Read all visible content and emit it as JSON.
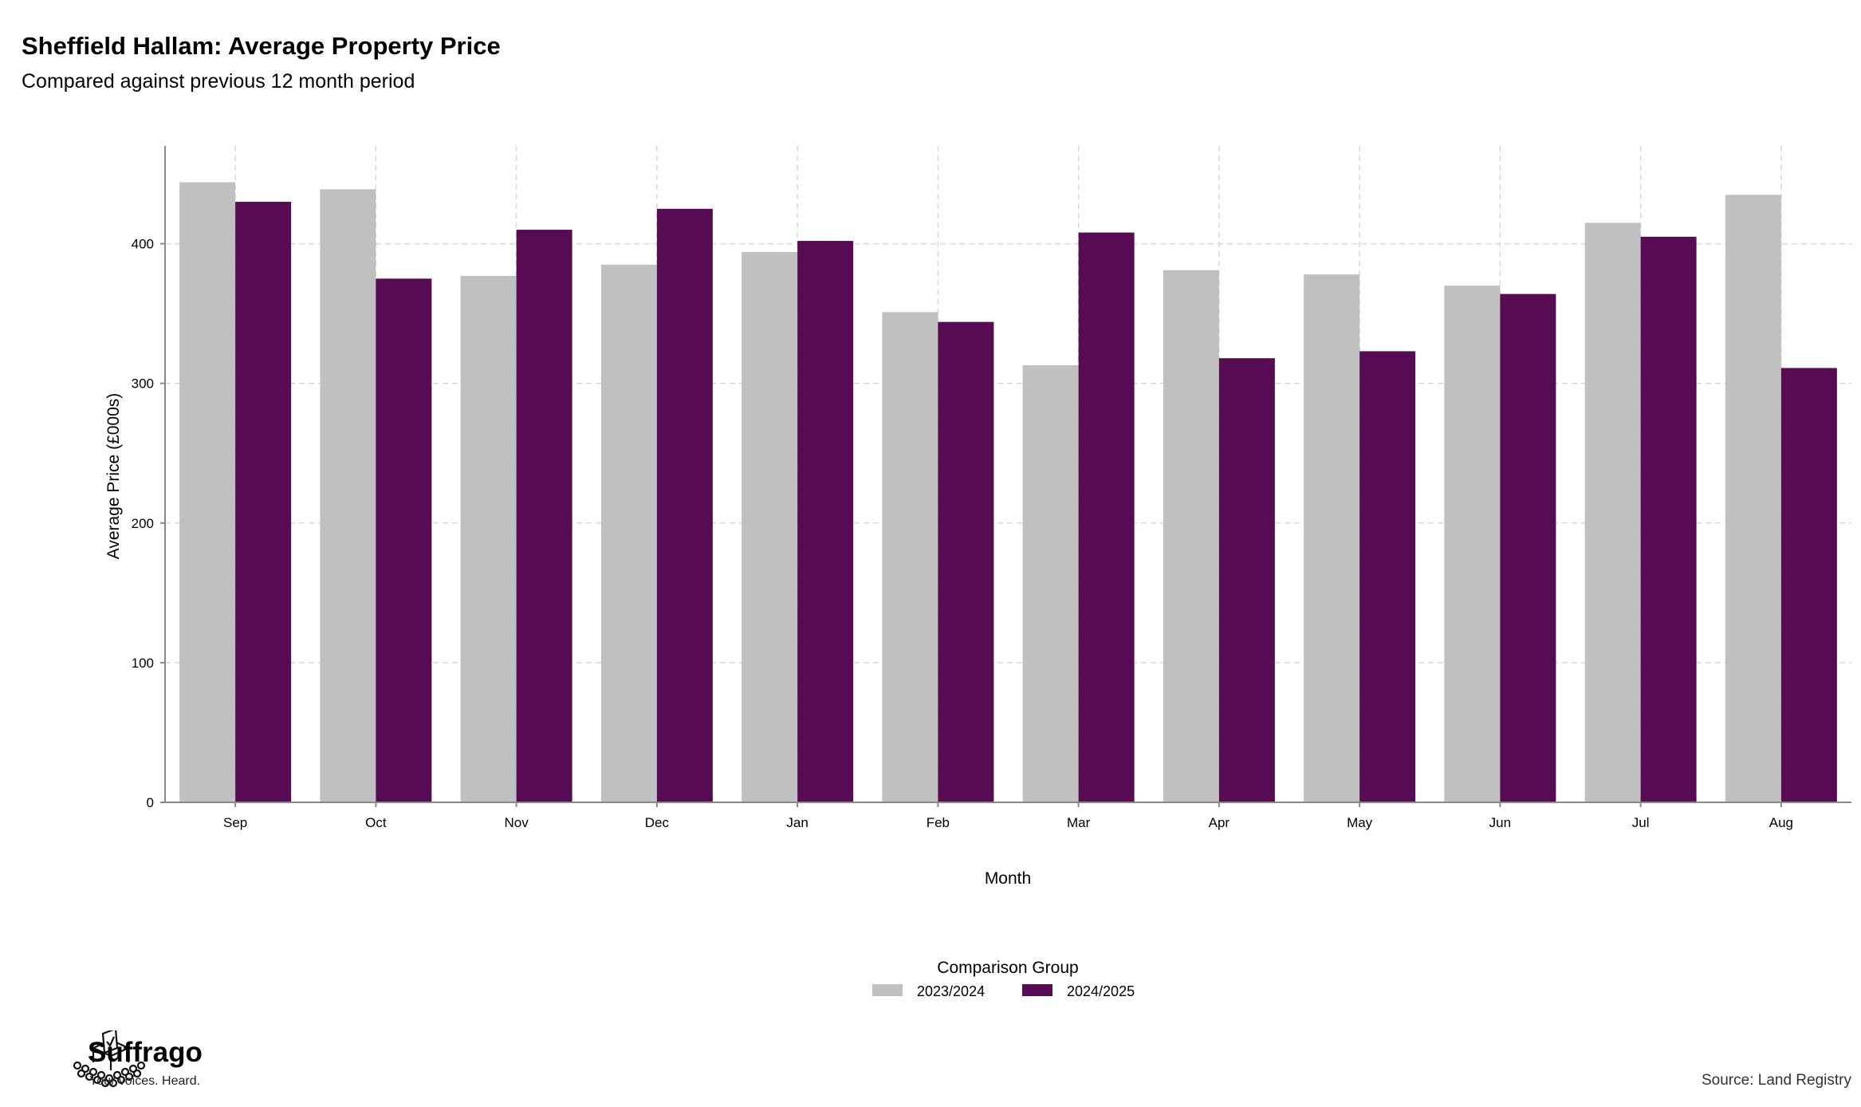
{
  "header": {
    "title": "Sheffield Hallam: Average Property Price",
    "subtitle": "Compared against previous 12 month period"
  },
  "chart_data": {
    "type": "bar",
    "xlabel": "Month",
    "ylabel": "Average Price (£000s)",
    "ylim": [
      0,
      470
    ],
    "yticks": [
      0,
      100,
      200,
      300,
      400
    ],
    "grid": true,
    "legend_title": "Comparison Group",
    "legend_position": "bottom-center",
    "categories": [
      "Sep",
      "Oct",
      "Nov",
      "Dec",
      "Jan",
      "Feb",
      "Mar",
      "Apr",
      "May",
      "Jun",
      "Jul",
      "Aug"
    ],
    "series": [
      {
        "name": "2023/2024",
        "color": "#c0c0c0",
        "values": [
          444,
          439,
          377,
          385,
          394,
          351,
          313,
          381,
          378,
          370,
          415,
          435
        ]
      },
      {
        "name": "2024/2025",
        "color": "#560b52",
        "values": [
          430,
          375,
          410,
          425,
          402,
          344,
          408,
          318,
          323,
          364,
          405,
          311
        ]
      }
    ]
  },
  "footer": {
    "brand_name": "Suffrago",
    "brand_tagline": "Your voices. Heard.",
    "brand_icon": "ballot-box-icon",
    "source": "Source: Land Registry"
  }
}
